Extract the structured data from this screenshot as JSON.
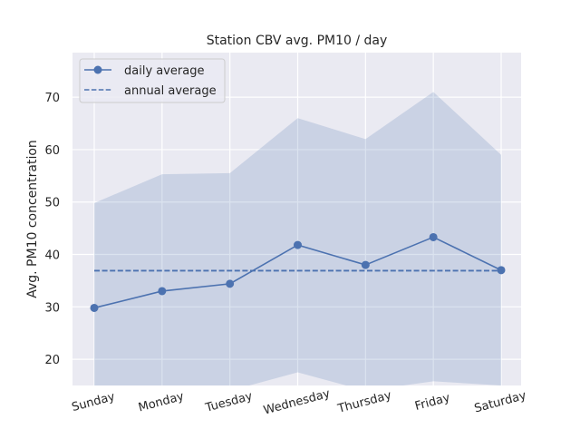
{
  "chart_data": {
    "type": "line",
    "title": "Station CBV avg. PM10 / day",
    "xlabel": "",
    "ylabel": "Avg. PM10 concentration",
    "categories": [
      "Sunday",
      "Monday",
      "Tuesday",
      "Wednesday",
      "Thursday",
      "Friday",
      "Saturday"
    ],
    "ylim": [
      15,
      78.5
    ],
    "yticks": [
      20,
      30,
      40,
      50,
      60,
      70
    ],
    "grid": true,
    "legend_position": "top-left",
    "series": [
      {
        "name": "daily average",
        "style": "solid-with-markers",
        "color": "#4c72b0",
        "values": [
          29.8,
          33.0,
          34.4,
          41.8,
          38.0,
          43.3,
          37.0
        ]
      },
      {
        "name": "annual average",
        "style": "dashed",
        "color": "#4c72b0",
        "values": [
          36.9,
          36.9,
          36.9,
          36.9,
          36.9,
          36.9,
          36.9
        ]
      }
    ],
    "band": {
      "color": "#4c72b0",
      "upper": [
        49.8,
        55.3,
        55.5,
        66.0,
        62.0,
        71.0,
        59.0
      ],
      "lower": [
        14.0,
        13.0,
        14.0,
        17.5,
        14.0,
        15.8,
        15.0
      ]
    }
  }
}
